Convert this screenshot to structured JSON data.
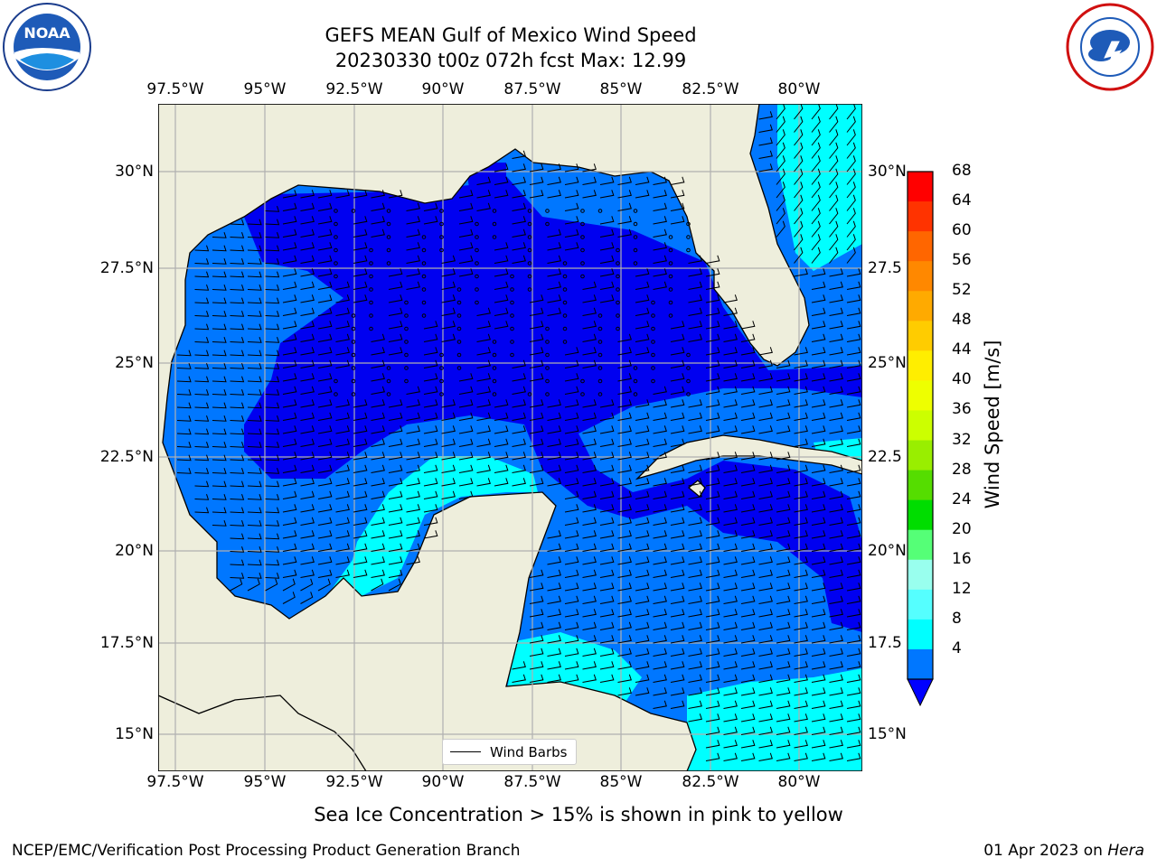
{
  "title": {
    "line1": "GEFS MEAN Gulf of Mexico Wind Speed",
    "line2": "20230330 t00z 072h fcst   Max: 12.99"
  },
  "axes": {
    "lon_labels": [
      "97.5°W",
      "95°W",
      "92.5°W",
      "90°W",
      "87.5°W",
      "85°W",
      "82.5°W",
      "80°W"
    ],
    "lat_labels": [
      "30°N",
      "27.5°N",
      "25°N",
      "22.5°N",
      "20°N",
      "17.5°N",
      "15°N"
    ],
    "lat_labels_right": [
      "30°N",
      "27.5",
      "25°N",
      "22.5",
      "20°N",
      "17.5",
      "15°N"
    ]
  },
  "legend": {
    "label": "Wind Barbs"
  },
  "colorbar": {
    "label": "Wind Speed [m/s]",
    "ticks": [
      "68",
      "64",
      "60",
      "56",
      "52",
      "48",
      "44",
      "40",
      "36",
      "32",
      "28",
      "24",
      "20",
      "16",
      "12",
      "8",
      "4"
    ],
    "colors": [
      "#ff0000",
      "#ff3300",
      "#ff6600",
      "#ff8800",
      "#ffaa00",
      "#ffcc00",
      "#ffee00",
      "#eeff00",
      "#ccff00",
      "#99ee00",
      "#55dd00",
      "#00dd00",
      "#55ff77",
      "#99ffee",
      "#55ffff",
      "#00ffff",
      "#0077ff"
    ],
    "extend_color": "#0000ff"
  },
  "caption": "Sea Ice Concentration > 15% is shown in pink to yellow",
  "footer": {
    "left": "NCEP/EMC/Verification Post Processing Product Generation Branch",
    "right_prefix": "01 Apr 2023 on ",
    "right_host": "Hera"
  },
  "logos": {
    "noaa_text": "NOAA"
  },
  "colors": {
    "land": "#eeeedc",
    "low": "#0000f0",
    "mid": "#0077ff",
    "high": "#00ffff",
    "grid": "#b0b0b0"
  }
}
